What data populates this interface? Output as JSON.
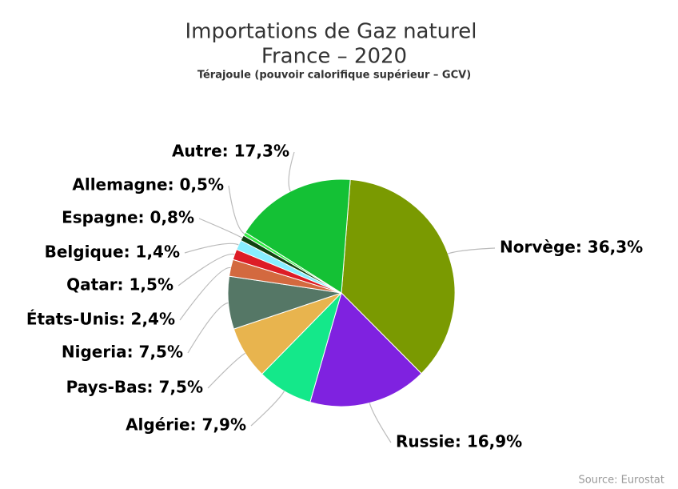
{
  "chart_data": {
    "type": "pie",
    "title": [
      "Importations de Gaz naturel",
      "France – 2020"
    ],
    "subtitle": "Térajoule (pouvoir calorifique supérieur – GCV)",
    "source": "Source: Eurostat",
    "values": [
      36.3,
      16.9,
      7.9,
      7.5,
      7.5,
      2.4,
      1.5,
      1.4,
      0.8,
      0.5,
      17.3
    ],
    "value_labels": [
      "Norvège: 36,3%",
      "Russie: 16,9%",
      "Algérie: 7,9%",
      "Pays-Bas: 7,5%",
      "Nigeria: 7,5%",
      "États-Unis: 2,4%",
      "Qatar: 1,5%",
      "Belgique: 1,4%",
      "Espagne: 0,8%",
      "Allemagne: 0,5%",
      "Autre: 17,3%"
    ],
    "colors": [
      "#7a9a01",
      "#7f22e0",
      "#14e88a",
      "#e8b44e",
      "#557766",
      "#d3693f",
      "#dd1c26",
      "#88eeff",
      "#114411",
      "#33ee44",
      "#14c135"
    ]
  }
}
